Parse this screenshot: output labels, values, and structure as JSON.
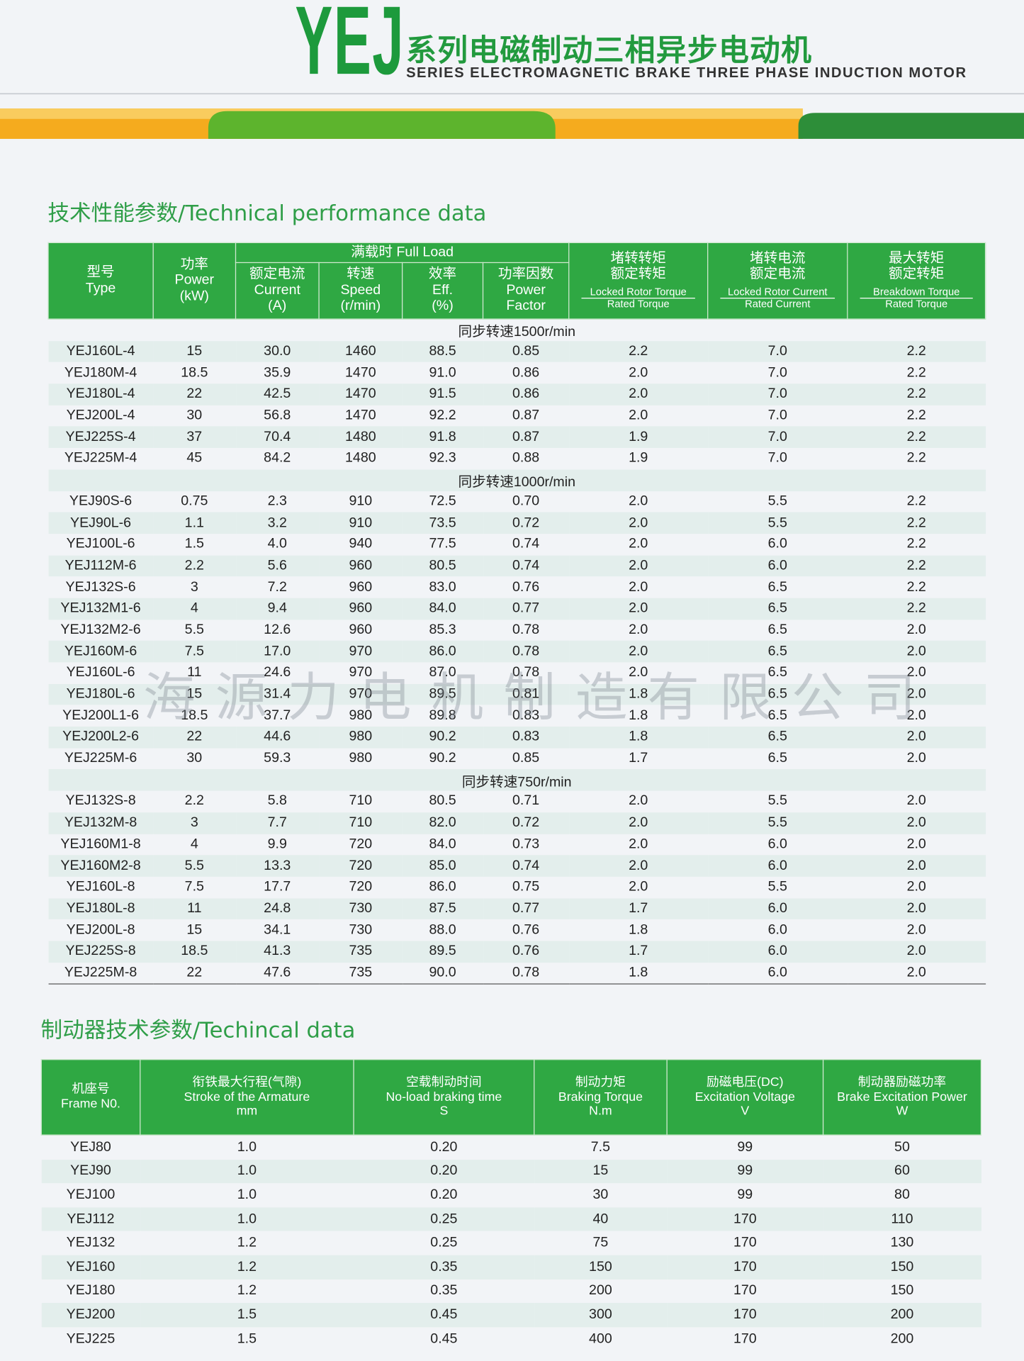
{
  "header": {
    "logo": "YEJ",
    "title_cn": "系列电磁制动三相异步电动机",
    "title_en": "SERIES ELECTROMAGNETIC BRAKE THREE PHASE INDUCTION MOTOR"
  },
  "section1": {
    "title": "技术性能参数/Technical performance data"
  },
  "table1": {
    "full_load": "满载时  Full Load",
    "columns": [
      [
        "型号",
        "Type"
      ],
      [
        "功率",
        "Power",
        "(kW)"
      ],
      [
        "额定电流",
        "Current",
        "(A)"
      ],
      [
        "转速",
        "Speed",
        "(r/min)"
      ],
      [
        "效率",
        "Eff.",
        "(%)"
      ],
      [
        "功率因数",
        "Power",
        "Factor"
      ],
      [
        "堵转转矩",
        "额定转矩",
        "Locked Rotor Torque",
        "Rated Torque"
      ],
      [
        "堵转电流",
        "额定电流",
        "Locked Rotor Current",
        "Rated Current"
      ],
      [
        "最大转矩",
        "额定转矩",
        "Breakdown Torque",
        "Rated Torque"
      ]
    ],
    "groups": [
      {
        "label": "同步转速1500r/min",
        "rows": [
          [
            "YEJ160L-4",
            "15",
            "30.0",
            "1460",
            "88.5",
            "0.85",
            "2.2",
            "7.0",
            "2.2"
          ],
          [
            "YEJ180M-4",
            "18.5",
            "35.9",
            "1470",
            "91.0",
            "0.86",
            "2.0",
            "7.0",
            "2.2"
          ],
          [
            "YEJ180L-4",
            "22",
            "42.5",
            "1470",
            "91.5",
            "0.86",
            "2.0",
            "7.0",
            "2.2"
          ],
          [
            "YEJ200L-4",
            "30",
            "56.8",
            "1470",
            "92.2",
            "0.87",
            "2.0",
            "7.0",
            "2.2"
          ],
          [
            "YEJ225S-4",
            "37",
            "70.4",
            "1480",
            "91.8",
            "0.87",
            "1.9",
            "7.0",
            "2.2"
          ],
          [
            "YEJ225M-4",
            "45",
            "84.2",
            "1480",
            "92.3",
            "0.88",
            "1.9",
            "7.0",
            "2.2"
          ]
        ]
      },
      {
        "label": "同步转速1000r/min",
        "rows": [
          [
            "YEJ90S-6",
            "0.75",
            "2.3",
            "910",
            "72.5",
            "0.70",
            "2.0",
            "5.5",
            "2.2"
          ],
          [
            "YEJ90L-6",
            "1.1",
            "3.2",
            "910",
            "73.5",
            "0.72",
            "2.0",
            "5.5",
            "2.2"
          ],
          [
            "YEJ100L-6",
            "1.5",
            "4.0",
            "940",
            "77.5",
            "0.74",
            "2.0",
            "6.0",
            "2.2"
          ],
          [
            "YEJ112M-6",
            "2.2",
            "5.6",
            "960",
            "80.5",
            "0.74",
            "2.0",
            "6.0",
            "2.2"
          ],
          [
            "YEJ132S-6",
            "3",
            "7.2",
            "960",
            "83.0",
            "0.76",
            "2.0",
            "6.5",
            "2.2"
          ],
          [
            "YEJ132M1-6",
            "4",
            "9.4",
            "960",
            "84.0",
            "0.77",
            "2.0",
            "6.5",
            "2.2"
          ],
          [
            "YEJ132M2-6",
            "5.5",
            "12.6",
            "960",
            "85.3",
            "0.78",
            "2.0",
            "6.5",
            "2.0"
          ],
          [
            "YEJ160M-6",
            "7.5",
            "17.0",
            "970",
            "86.0",
            "0.78",
            "2.0",
            "6.5",
            "2.0"
          ],
          [
            "YEJ160L-6",
            "11",
            "24.6",
            "970",
            "87.0",
            "0.78",
            "2.0",
            "6.5",
            "2.0"
          ],
          [
            "YEJ180L-6",
            "15",
            "31.4",
            "970",
            "89.5",
            "0.81",
            "1.8",
            "6.5",
            "2.0"
          ],
          [
            "YEJ200L1-6",
            "18.5",
            "37.7",
            "980",
            "89.8",
            "0.83",
            "1.8",
            "6.5",
            "2.0"
          ],
          [
            "YEJ200L2-6",
            "22",
            "44.6",
            "980",
            "90.2",
            "0.83",
            "1.8",
            "6.5",
            "2.0"
          ],
          [
            "YEJ225M-6",
            "30",
            "59.3",
            "980",
            "90.2",
            "0.85",
            "1.7",
            "6.5",
            "2.0"
          ]
        ]
      },
      {
        "label": "同步转速750r/min",
        "rows": [
          [
            "YEJ132S-8",
            "2.2",
            "5.8",
            "710",
            "80.5",
            "0.71",
            "2.0",
            "5.5",
            "2.0"
          ],
          [
            "YEJ132M-8",
            "3",
            "7.7",
            "710",
            "82.0",
            "0.72",
            "2.0",
            "5.5",
            "2.0"
          ],
          [
            "YEJ160M1-8",
            "4",
            "9.9",
            "720",
            "84.0",
            "0.73",
            "2.0",
            "6.0",
            "2.0"
          ],
          [
            "YEJ160M2-8",
            "5.5",
            "13.3",
            "720",
            "85.0",
            "0.74",
            "2.0",
            "6.0",
            "2.0"
          ],
          [
            "YEJ160L-8",
            "7.5",
            "17.7",
            "720",
            "86.0",
            "0.75",
            "2.0",
            "5.5",
            "2.0"
          ],
          [
            "YEJ180L-8",
            "11",
            "24.8",
            "730",
            "87.5",
            "0.77",
            "1.7",
            "6.0",
            "2.0"
          ],
          [
            "YEJ200L-8",
            "15",
            "34.1",
            "730",
            "88.0",
            "0.76",
            "1.8",
            "6.0",
            "2.0"
          ],
          [
            "YEJ225S-8",
            "18.5",
            "41.3",
            "735",
            "89.5",
            "0.76",
            "1.7",
            "6.0",
            "2.0"
          ],
          [
            "YEJ225M-8",
            "22",
            "47.6",
            "735",
            "90.0",
            "0.78",
            "1.8",
            "6.0",
            "2.0"
          ]
        ]
      }
    ]
  },
  "watermark": "海源力电机制造有限公司",
  "section2": {
    "title": "制动器技术参数/Techincal data"
  },
  "table2": {
    "columns": [
      [
        "机座号",
        "Frame N0."
      ],
      [
        "衔铁最大行程(气隙)",
        "Stroke of the Armature",
        "mm"
      ],
      [
        "空载制动时间",
        "No-load braking time",
        "S"
      ],
      [
        "制动力矩",
        "Braking Torque",
        "N.m"
      ],
      [
        "励磁电压(DC)",
        "Excitation Voltage",
        "V"
      ],
      [
        "制动器励磁功率",
        "Brake Excitation Power",
        "W"
      ]
    ],
    "rows": [
      [
        "YEJ80",
        "1.0",
        "0.20",
        "7.5",
        "99",
        "50"
      ],
      [
        "YEJ90",
        "1.0",
        "0.20",
        "15",
        "99",
        "60"
      ],
      [
        "YEJ100",
        "1.0",
        "0.20",
        "30",
        "99",
        "80"
      ],
      [
        "YEJ112",
        "1.0",
        "0.25",
        "40",
        "170",
        "110"
      ],
      [
        "YEJ132",
        "1.2",
        "0.25",
        "75",
        "170",
        "130"
      ],
      [
        "YEJ160",
        "1.2",
        "0.35",
        "150",
        "170",
        "150"
      ],
      [
        "YEJ180",
        "1.2",
        "0.35",
        "200",
        "170",
        "150"
      ],
      [
        "YEJ200",
        "1.5",
        "0.45",
        "300",
        "170",
        "200"
      ],
      [
        "YEJ225",
        "1.5",
        "0.45",
        "400",
        "170",
        "200"
      ]
    ]
  }
}
